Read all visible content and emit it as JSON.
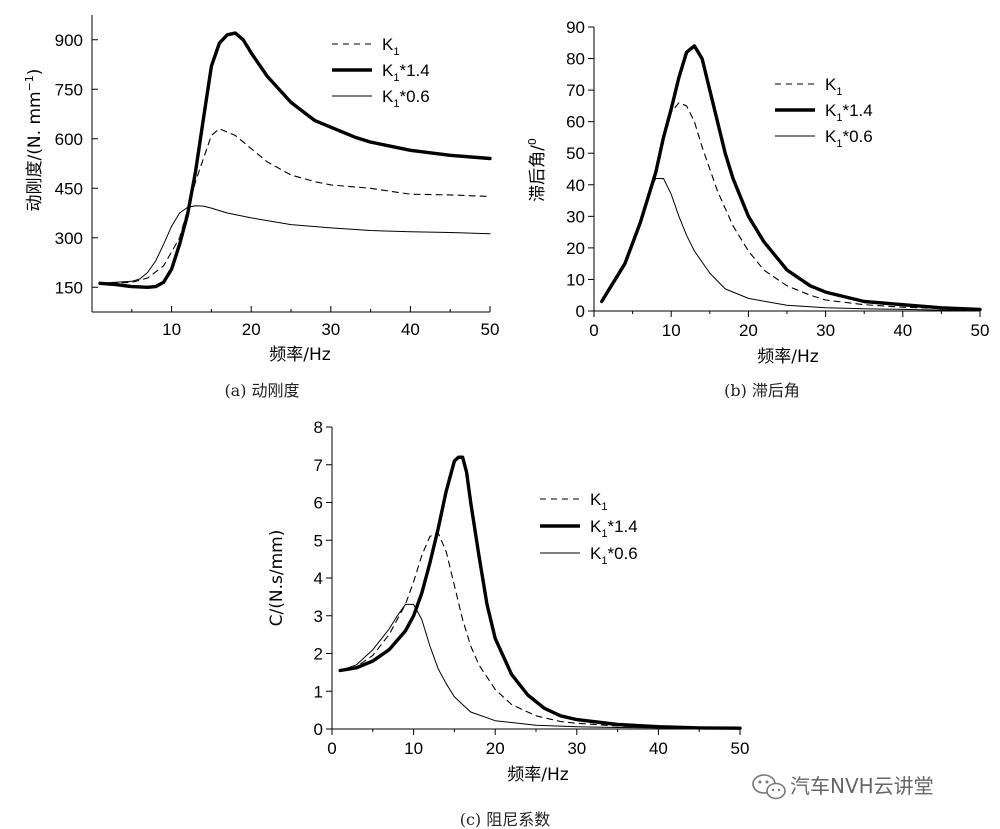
{
  "chart_data": [
    {
      "id": "a",
      "type": "line",
      "caption": "(a) 动刚度",
      "xlabel": "频率/Hz",
      "ylabel_main": "动刚度/(N. mm",
      "ylabel_sup": "−1",
      "ylabel_end": ")",
      "xlim": [
        0,
        50
      ],
      "ylim": [
        75,
        975
      ],
      "xticks": [
        "10",
        "20",
        "30",
        "40",
        "50"
      ],
      "xtick_values": [
        10,
        20,
        30,
        40,
        50
      ],
      "yticks": [
        "150",
        "300",
        "450",
        "600",
        "750",
        "900"
      ],
      "ytick_values": [
        150,
        300,
        450,
        600,
        750,
        900
      ],
      "legend_position": "top-right",
      "series": [
        {
          "label_base": "K",
          "label_sub": "1",
          "label_suffix": "",
          "style": "dashed",
          "x": [
            1,
            3,
            5,
            7,
            9,
            11,
            13,
            15,
            16,
            18,
            20,
            22,
            25,
            28,
            30,
            35,
            40,
            45,
            50
          ],
          "y": [
            162,
            163,
            165,
            178,
            215,
            300,
            470,
            610,
            630,
            610,
            570,
            530,
            490,
            470,
            460,
            450,
            432,
            430,
            425
          ]
        },
        {
          "label_base": "K",
          "label_sub": "1",
          "label_suffix": "*1.4",
          "style": "thick",
          "x": [
            1,
            3,
            5,
            7,
            8,
            9,
            10,
            11,
            12,
            13,
            14,
            15,
            16,
            17,
            18,
            19,
            20,
            22,
            25,
            28,
            30,
            33,
            35,
            40,
            45,
            50
          ],
          "y": [
            162,
            158,
            152,
            150,
            152,
            165,
            205,
            280,
            370,
            500,
            660,
            820,
            890,
            915,
            920,
            900,
            860,
            790,
            710,
            655,
            635,
            605,
            590,
            565,
            550,
            540
          ]
        },
        {
          "label_base": "K",
          "label_sub": "1",
          "label_suffix": "*0.6",
          "style": "thin",
          "x": [
            1,
            3,
            5,
            6,
            7,
            8,
            9,
            10,
            11,
            12,
            13,
            14,
            15,
            17,
            20,
            25,
            30,
            35,
            40,
            45,
            50
          ],
          "y": [
            162,
            165,
            168,
            175,
            195,
            230,
            280,
            335,
            375,
            392,
            397,
            396,
            390,
            375,
            360,
            340,
            330,
            322,
            318,
            316,
            312
          ]
        }
      ]
    },
    {
      "id": "b",
      "type": "line",
      "caption": "(b) 滞后角",
      "xlabel": "频率/Hz",
      "ylabel_main": "滞后角/",
      "ylabel_sup": "0",
      "ylabel_end": "",
      "xlim": [
        0,
        50
      ],
      "ylim": [
        0,
        90
      ],
      "xticks": [
        "0",
        "10",
        "20",
        "30",
        "40",
        "50"
      ],
      "xtick_values": [
        0,
        10,
        20,
        30,
        40,
        50
      ],
      "yticks": [
        "0",
        "10",
        "20",
        "30",
        "40",
        "50",
        "60",
        "70",
        "80",
        "90"
      ],
      "ytick_values": [
        0,
        10,
        20,
        30,
        40,
        50,
        60,
        70,
        80,
        90
      ],
      "legend_position": "top-right",
      "series": [
        {
          "label_base": "K",
          "label_sub": "1",
          "label_suffix": "",
          "style": "dashed",
          "x": [
            1,
            2,
            4,
            6,
            8,
            9,
            10,
            11,
            12,
            13,
            14,
            15,
            16,
            18,
            20,
            22,
            25,
            28,
            30,
            35,
            40,
            45,
            50
          ],
          "y": [
            3,
            7,
            15,
            28,
            45,
            55,
            63,
            66,
            65,
            60,
            52,
            45,
            38,
            27,
            19,
            13,
            8,
            5,
            3.5,
            2,
            1.2,
            0.8,
            0.5
          ]
        },
        {
          "label_base": "K",
          "label_sub": "1",
          "label_suffix": "*1.4",
          "style": "thick",
          "x": [
            1,
            2,
            4,
            6,
            8,
            9,
            10,
            11,
            12,
            13,
            14,
            15,
            16,
            17,
            18,
            20,
            22,
            25,
            28,
            30,
            35,
            40,
            45,
            50
          ],
          "y": [
            3,
            7,
            15,
            28,
            44,
            55,
            64,
            74,
            82,
            84,
            80,
            70,
            60,
            50,
            42,
            30,
            22,
            13,
            8,
            6,
            3,
            2,
            1,
            0.5
          ]
        },
        {
          "label_base": "K",
          "label_sub": "1",
          "label_suffix": "*0.6",
          "style": "thin",
          "x": [
            1,
            2,
            4,
            6,
            7,
            8,
            9,
            10,
            11,
            12,
            13,
            15,
            17,
            20,
            25,
            30,
            35,
            40,
            45,
            50
          ],
          "y": [
            3,
            7,
            15,
            28,
            37,
            42,
            42,
            37,
            30,
            24,
            19,
            12,
            7,
            4,
            1.8,
            1,
            0.7,
            0.5,
            0.3,
            0.2
          ]
        }
      ]
    },
    {
      "id": "c",
      "type": "line",
      "caption": "(c) 阻尼系数",
      "xlabel": "频率/Hz",
      "ylabel_main": "C/(N.s/mm)",
      "ylabel_sup": "",
      "ylabel_end": "",
      "xlim": [
        0,
        50
      ],
      "ylim": [
        0,
        8
      ],
      "xticks": [
        "0",
        "10",
        "20",
        "30",
        "40",
        "50"
      ],
      "xtick_values": [
        0,
        10,
        20,
        30,
        40,
        50
      ],
      "yticks": [
        "0",
        "1",
        "2",
        "3",
        "4",
        "5",
        "6",
        "7",
        "8"
      ],
      "ytick_values": [
        0,
        1,
        2,
        3,
        4,
        5,
        6,
        7,
        8
      ],
      "legend_position": "top-right",
      "series": [
        {
          "label_base": "K",
          "label_sub": "1",
          "label_suffix": "",
          "style": "dashed",
          "x": [
            1,
            3,
            5,
            7,
            9,
            10,
            11,
            12,
            13,
            14,
            15,
            16,
            17,
            18,
            20,
            22,
            25,
            28,
            30,
            35,
            40,
            45,
            50
          ],
          "y": [
            1.55,
            1.65,
            1.95,
            2.5,
            3.3,
            3.9,
            4.6,
            5.1,
            5.2,
            4.7,
            3.8,
            2.9,
            2.2,
            1.7,
            1.05,
            0.65,
            0.35,
            0.2,
            0.15,
            0.08,
            0.05,
            0.03,
            0.02
          ]
        },
        {
          "label_base": "K",
          "label_sub": "1",
          "label_suffix": "*1.4",
          "style": "thick",
          "x": [
            1,
            3,
            5,
            7,
            9,
            10,
            11,
            12,
            13,
            14,
            15,
            15.5,
            16,
            16.5,
            17,
            18,
            19,
            20,
            22,
            24,
            26,
            28,
            30,
            35,
            40,
            45,
            50
          ],
          "y": [
            1.55,
            1.62,
            1.8,
            2.1,
            2.6,
            3.0,
            3.6,
            4.4,
            5.3,
            6.3,
            7.1,
            7.2,
            7.2,
            6.8,
            6.0,
            4.6,
            3.3,
            2.4,
            1.45,
            0.9,
            0.55,
            0.35,
            0.25,
            0.12,
            0.06,
            0.03,
            0.02
          ]
        },
        {
          "label_base": "K",
          "label_sub": "1",
          "label_suffix": "*0.6",
          "style": "thin",
          "x": [
            1,
            3,
            5,
            7,
            8,
            9,
            10,
            11,
            12,
            13,
            14,
            15,
            17,
            20,
            25,
            30,
            35,
            40,
            45,
            50
          ],
          "y": [
            1.55,
            1.7,
            2.1,
            2.65,
            3.0,
            3.3,
            3.3,
            2.9,
            2.2,
            1.6,
            1.2,
            0.85,
            0.45,
            0.22,
            0.1,
            0.06,
            0.04,
            0.03,
            0.02,
            0.01
          ]
        }
      ]
    }
  ],
  "watermark": "汽车NVH云讲堂"
}
